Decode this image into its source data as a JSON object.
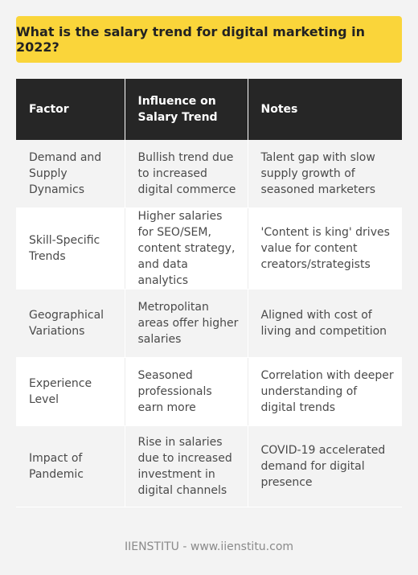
{
  "title": "What is the salary trend for digital marketing in 2022?",
  "table": {
    "headers": [
      "Factor",
      "Influence on Salary Trend",
      "Notes"
    ],
    "rows": [
      {
        "factor": "Demand and Supply Dynamics",
        "influence": "Bullish trend due to increased digital commerce",
        "notes": "Talent gap with slow supply growth of seasoned marketers"
      },
      {
        "factor": "Skill-Specific Trends",
        "influence": "Higher salaries for SEO/SEM, content strategy, and data analytics",
        "notes": "'Content is king' drives value for content creators/strategists"
      },
      {
        "factor": "Geographical Variations",
        "influence": "Metropolitan areas offer higher salaries",
        "notes": "Aligned with cost of living and competition"
      },
      {
        "factor": "Experience Level",
        "influence": "Seasoned professionals earn more",
        "notes": "Correlation with deeper understanding of digital trends"
      },
      {
        "factor": "Impact of Pandemic",
        "influence": "Rise in salaries due to increased investment in digital channels",
        "notes": "COVID-19 accelerated demand for digital presence"
      }
    ]
  },
  "footer": "IIENSTITU - www.iienstitu.com",
  "colors": {
    "banner": "#fad53a",
    "header_bg": "#262626",
    "header_text": "#ffffff",
    "row_alt": "#f3f3f3",
    "row": "#ffffff"
  }
}
